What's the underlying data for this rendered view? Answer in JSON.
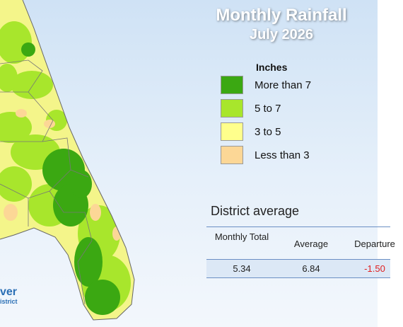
{
  "header": {
    "title": "Monthly Rainfall",
    "subtitle": "July 2026"
  },
  "legend": {
    "title": "Inches",
    "items": [
      {
        "label": "More than 7",
        "color": "#3ba812"
      },
      {
        "label": "5 to 7",
        "color": "#a8e62c"
      },
      {
        "label": "3 to 5",
        "color": "#ffff8c"
      },
      {
        "label": "Less than 3",
        "color": "#fcd796"
      }
    ]
  },
  "table": {
    "title": "District average",
    "columns": [
      "Monthly Total",
      "Average",
      "Departure"
    ],
    "rows": [
      [
        "5.34",
        "6.84",
        "-1.50"
      ]
    ]
  },
  "logo": {
    "line1": "ver",
    "line2": "istrict"
  }
}
